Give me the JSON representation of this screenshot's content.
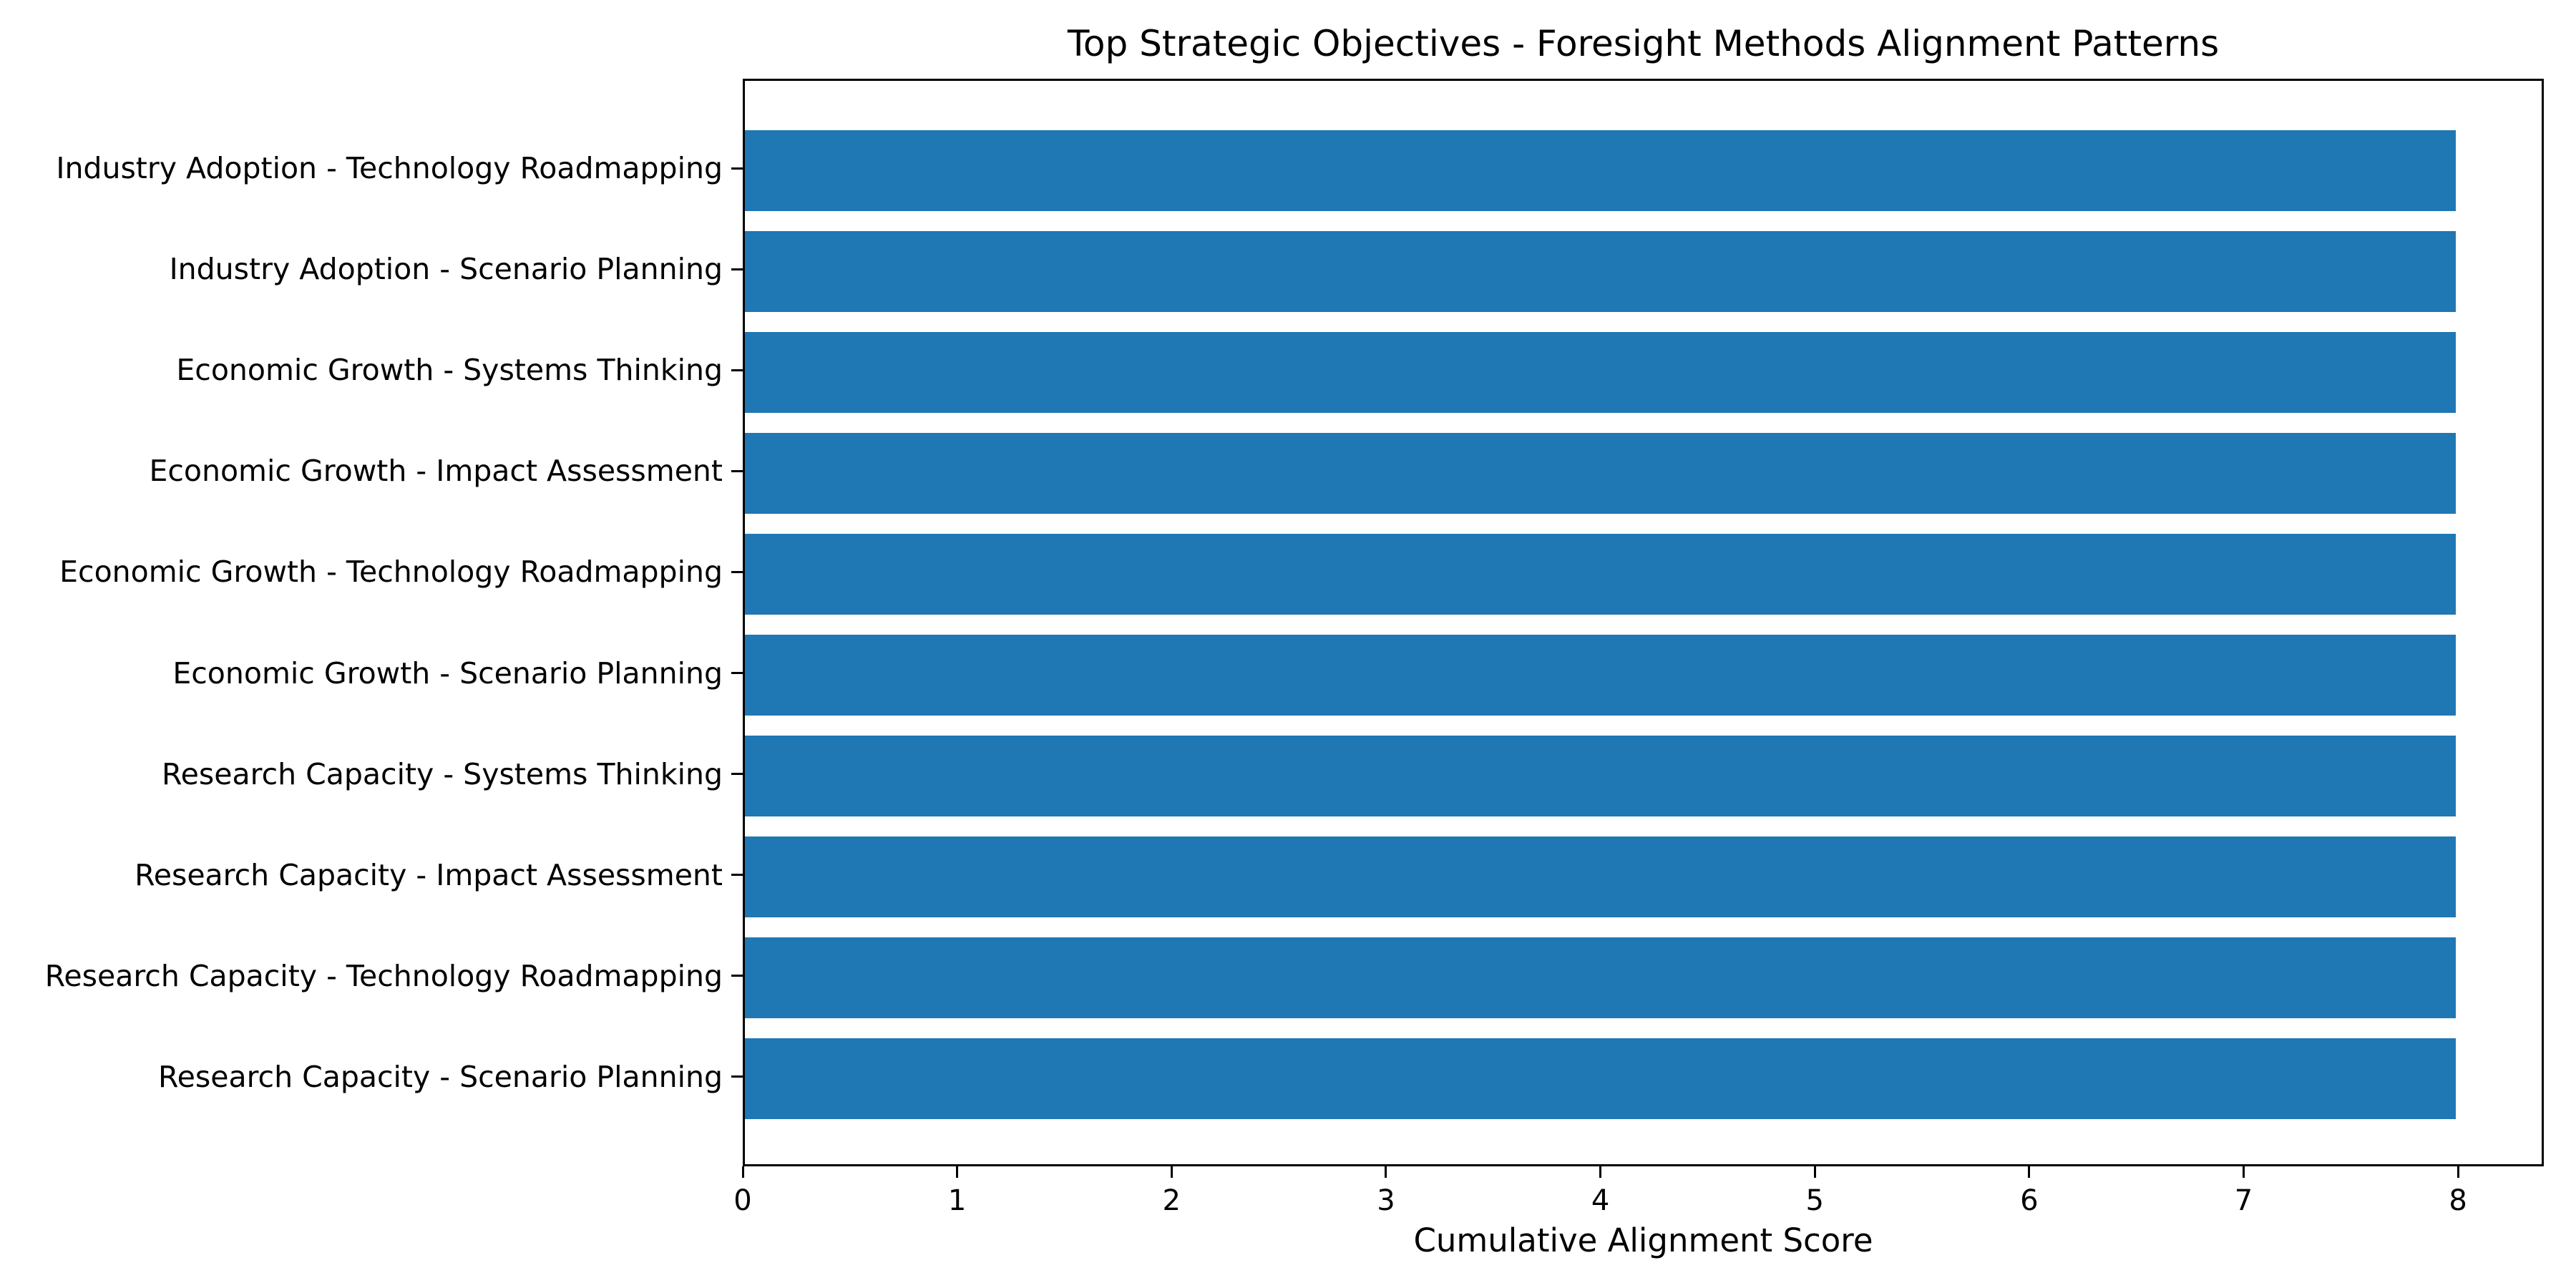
{
  "figure": {
    "background_color": "#ffffff",
    "text_color": "#000000"
  },
  "chart_data": {
    "type": "bar",
    "orientation": "horizontal",
    "title": "Top Strategic Objectives - Foresight Methods Alignment Patterns",
    "xlabel": "Cumulative Alignment Score",
    "ylabel": "",
    "categories": [
      "Industry Adoption - Technology Roadmapping",
      "Industry Adoption - Scenario Planning",
      "Economic Growth - Systems Thinking",
      "Economic Growth - Impact Assessment",
      "Economic Growth - Technology Roadmapping",
      "Economic Growth - Scenario Planning",
      "Research Capacity - Systems Thinking",
      "Research Capacity - Impact Assessment",
      "Research Capacity - Technology Roadmapping",
      "Research Capacity - Scenario Planning"
    ],
    "values": [
      8,
      8,
      8,
      8,
      8,
      8,
      8,
      8,
      8,
      8
    ],
    "x_ticks": [
      0,
      1,
      2,
      3,
      4,
      5,
      6,
      7,
      8
    ],
    "xlim": [
      0,
      8.4
    ],
    "ylim": [
      -0.89,
      9.89
    ],
    "bar_thickness": 0.8,
    "bar_color": "#1f77b4",
    "grid": false,
    "legend": "none"
  }
}
